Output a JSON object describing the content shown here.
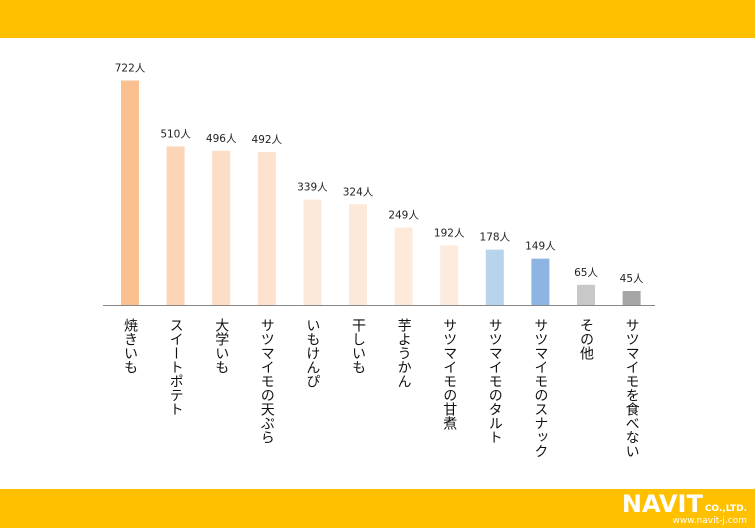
{
  "colors": {
    "band": "#FFC000",
    "axis": "#888888"
  },
  "logo": {
    "name": "NAVIT",
    "company": "CO.,LTD.",
    "url": "www.navit-j.com"
  },
  "chart_data": {
    "type": "bar",
    "categories": [
      "焼きいも",
      "スイートポテト",
      "大学いも",
      "サツマイモの天ぷら",
      "いもけんぴ",
      "干しいも",
      "芋ようかん",
      "サツマイモの甘煮",
      "サツマイモのタルト",
      "サツマイモのスナック",
      "その他",
      "サツマイモを食べない"
    ],
    "values": [
      722,
      510,
      496,
      492,
      339,
      324,
      249,
      192,
      178,
      149,
      65,
      45
    ],
    "data_labels": [
      "722人",
      "510人",
      "496人",
      "492人",
      "339人",
      "324人",
      "249人",
      "192人",
      "178人",
      "149人",
      "65人",
      "45人"
    ],
    "bar_colors": [
      "#FAC090",
      "#FBD5B5",
      "#FCDDC5",
      "#FCE2CF",
      "#FDE9D9",
      "#FDE9D9",
      "#FDEADA",
      "#FDECDE",
      "#B8D3EC",
      "#8DB4E2",
      "#C8C8C8",
      "#A6A6A6"
    ],
    "unit": "人",
    "ylim": [
      0,
      780
    ],
    "grid": false,
    "legend": "none"
  }
}
